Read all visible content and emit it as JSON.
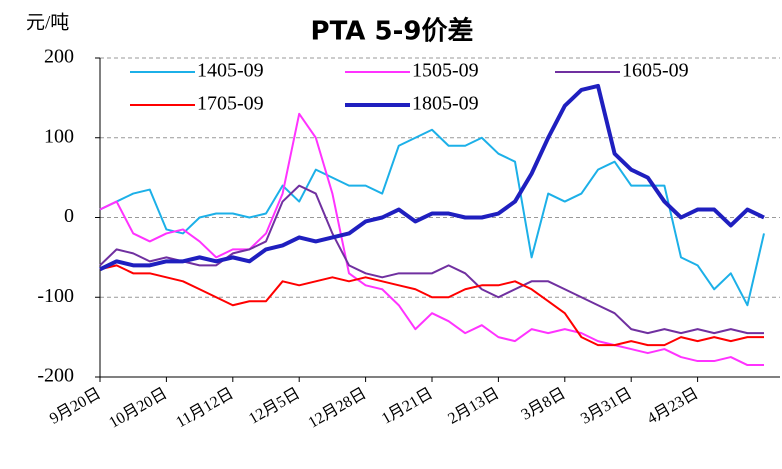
{
  "chart_data": {
    "type": "line",
    "title": "PTA 5-9价差",
    "y_label": "元/吨",
    "categories": [
      "9月20日",
      null,
      null,
      null,
      "10月20日",
      null,
      null,
      null,
      "11月12日",
      null,
      null,
      null,
      "12月5日",
      null,
      null,
      null,
      "12月28日",
      null,
      null,
      null,
      "1月21日",
      null,
      null,
      null,
      "2月13日",
      null,
      null,
      null,
      "3月8日",
      null,
      null,
      null,
      "3月31日",
      null,
      null,
      null,
      "4月23日",
      null,
      null,
      null,
      null
    ],
    "series": [
      {
        "name": "1405-09",
        "color": "#1cb0e8",
        "linewidth": 2,
        "values": [
          10,
          20,
          30,
          35,
          -15,
          -20,
          0,
          5,
          5,
          0,
          5,
          40,
          20,
          60,
          50,
          40,
          40,
          30,
          90,
          100,
          110,
          90,
          90,
          100,
          80,
          70,
          -50,
          30,
          20,
          30,
          60,
          70,
          40,
          40,
          40,
          -50,
          -60,
          -90,
          -70,
          -110,
          -20
        ]
      },
      {
        "name": "1505-09",
        "color": "#ff33ff",
        "linewidth": 2,
        "values": [
          10,
          20,
          -20,
          -30,
          -20,
          -15,
          -30,
          -50,
          -40,
          -40,
          -20,
          30,
          130,
          100,
          30,
          -70,
          -85,
          -90,
          -110,
          -140,
          -120,
          -130,
          -145,
          -135,
          -150,
          -155,
          -140,
          -145,
          -140,
          -145,
          -155,
          -160,
          -165,
          -170,
          -165,
          -175,
          -180,
          -180,
          -175,
          -185,
          -185
        ]
      },
      {
        "name": "1605-09",
        "color": "#7030a0",
        "linewidth": 2,
        "values": [
          -60,
          -40,
          -45,
          -55,
          -50,
          -55,
          -60,
          -60,
          -45,
          -40,
          -30,
          20,
          40,
          30,
          -20,
          -60,
          -70,
          -75,
          -70,
          -70,
          -70,
          -60,
          -70,
          -90,
          -100,
          -90,
          -80,
          -80,
          -90,
          -100,
          -110,
          -120,
          -140,
          -145,
          -140,
          -145,
          -140,
          -145,
          -140,
          -145,
          -145
        ]
      },
      {
        "name": "1705-09",
        "color": "#ff0000",
        "linewidth": 2,
        "values": [
          -65,
          -60,
          -70,
          -70,
          -75,
          -80,
          -90,
          -100,
          -110,
          -105,
          -105,
          -80,
          -85,
          -80,
          -75,
          -80,
          -75,
          -80,
          -85,
          -90,
          -100,
          -100,
          -90,
          -85,
          -85,
          -80,
          -90,
          -105,
          -120,
          -150,
          -160,
          -160,
          -155,
          -160,
          -160,
          -150,
          -155,
          -150,
          -155,
          -150,
          -150
        ]
      },
      {
        "name": "1805-09",
        "color": "#1f1fbf",
        "linewidth": 4,
        "values": [
          -65,
          -55,
          -60,
          -60,
          -55,
          -55,
          -50,
          -55,
          -50,
          -55,
          -40,
          -35,
          -25,
          -30,
          -25,
          -20,
          -5,
          0,
          10,
          -5,
          5,
          5,
          0,
          0,
          5,
          20,
          55,
          100,
          140,
          160,
          165,
          80,
          60,
          50,
          20,
          0,
          10,
          10,
          -10,
          10,
          0
        ]
      }
    ],
    "ylim": [
      -200,
      200
    ],
    "yticks": [
      -200,
      -100,
      0,
      100,
      200
    ],
    "grid": true,
    "legend": "top"
  }
}
